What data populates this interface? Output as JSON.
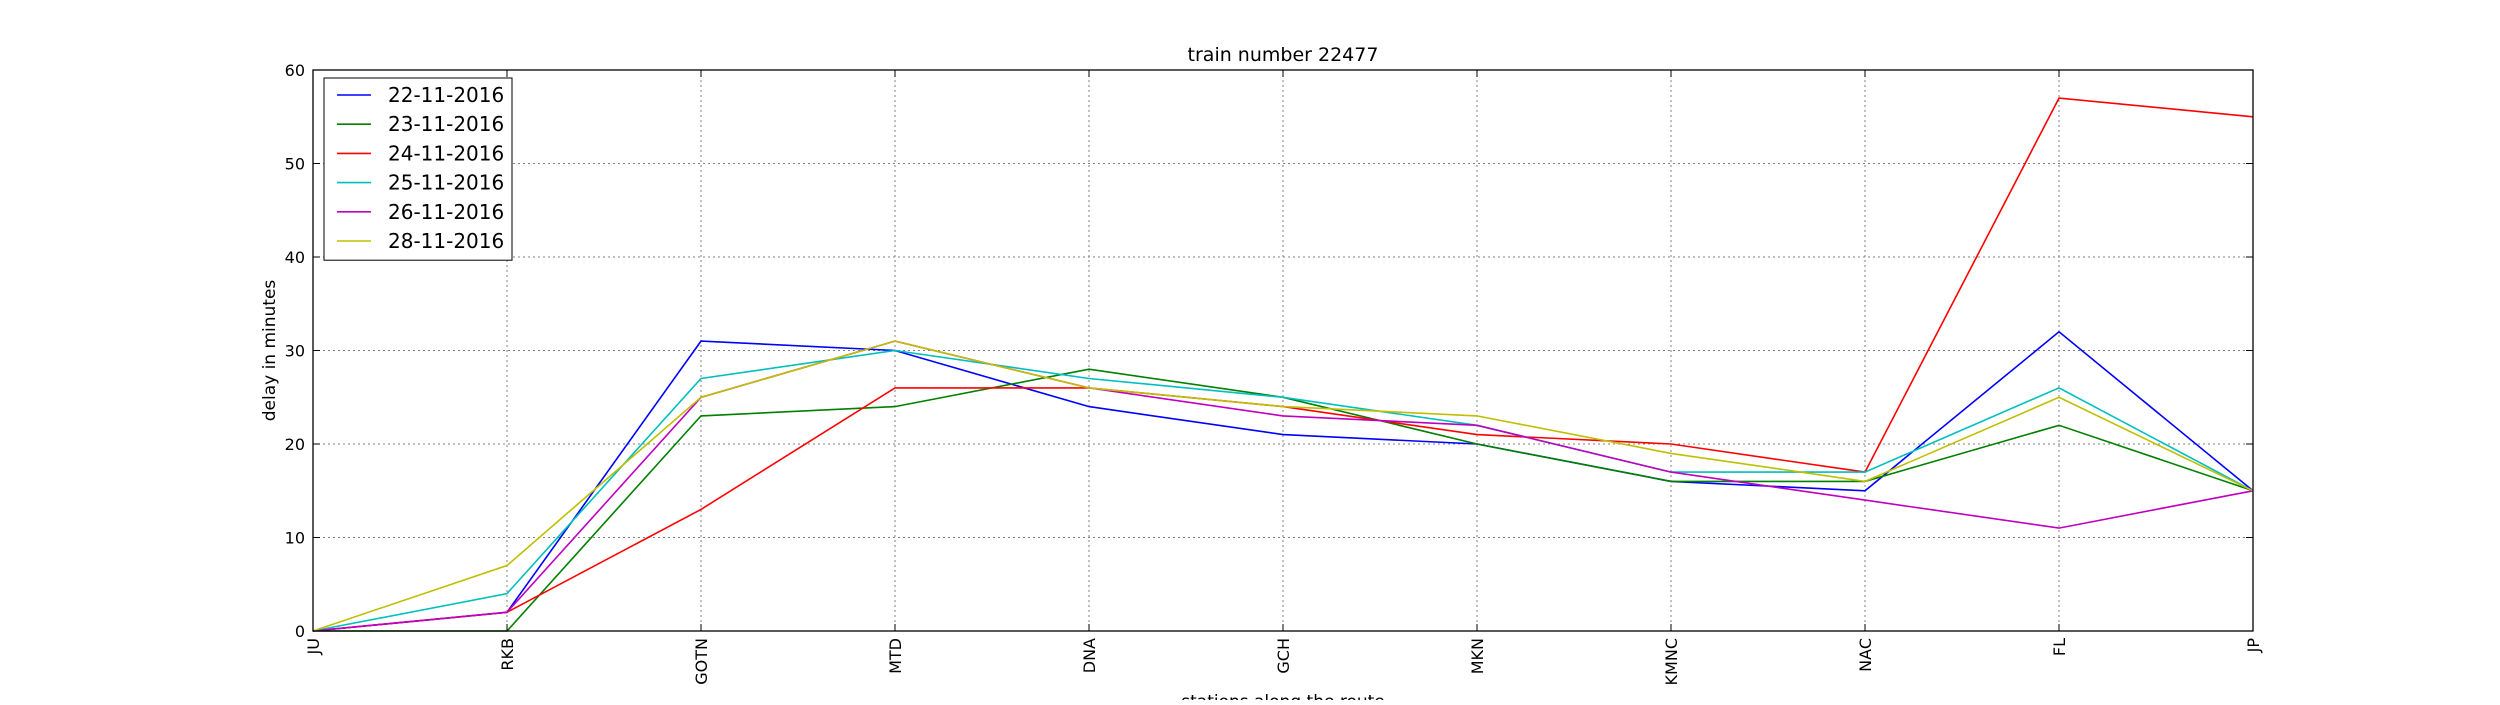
{
  "chart_data": {
    "type": "line",
    "title": "train number 22477",
    "xlabel": "stations along the route",
    "ylabel": "delay in minutes",
    "categories": [
      "JU",
      "RKB",
      "GOTN",
      "MTD",
      "DNA",
      "GCH",
      "MKN",
      "KMNC",
      "NAC",
      "FL",
      "JP"
    ],
    "ylim": [
      0,
      60
    ],
    "yticks": [
      0,
      10,
      20,
      30,
      40,
      50,
      60
    ],
    "grid": true,
    "legend_position": "top-left",
    "series": [
      {
        "name": "22-11-2016",
        "color": "#0000ff",
        "values": [
          0,
          2,
          31,
          30,
          24,
          21,
          20,
          16,
          15,
          32,
          15
        ]
      },
      {
        "name": "23-11-2016",
        "color": "#008000",
        "values": [
          0,
          0,
          23,
          24,
          28,
          25,
          20,
          16,
          16,
          22,
          15
        ]
      },
      {
        "name": "24-11-2016",
        "color": "#ff0000",
        "values": [
          0,
          2,
          13,
          26,
          26,
          24,
          21,
          20,
          17,
          57,
          55
        ]
      },
      {
        "name": "25-11-2016",
        "color": "#00bfbf",
        "values": [
          0,
          4,
          27,
          30,
          27,
          25,
          22,
          17,
          17,
          26,
          15
        ]
      },
      {
        "name": "26-11-2016",
        "color": "#bf00bf",
        "values": [
          0,
          2,
          25,
          31,
          26,
          23,
          22,
          17,
          14,
          11,
          15
        ]
      },
      {
        "name": "28-11-2016",
        "color": "#bfbf00",
        "values": [
          0,
          7,
          25,
          31,
          26,
          24,
          23,
          19,
          16,
          25,
          15
        ]
      }
    ]
  }
}
